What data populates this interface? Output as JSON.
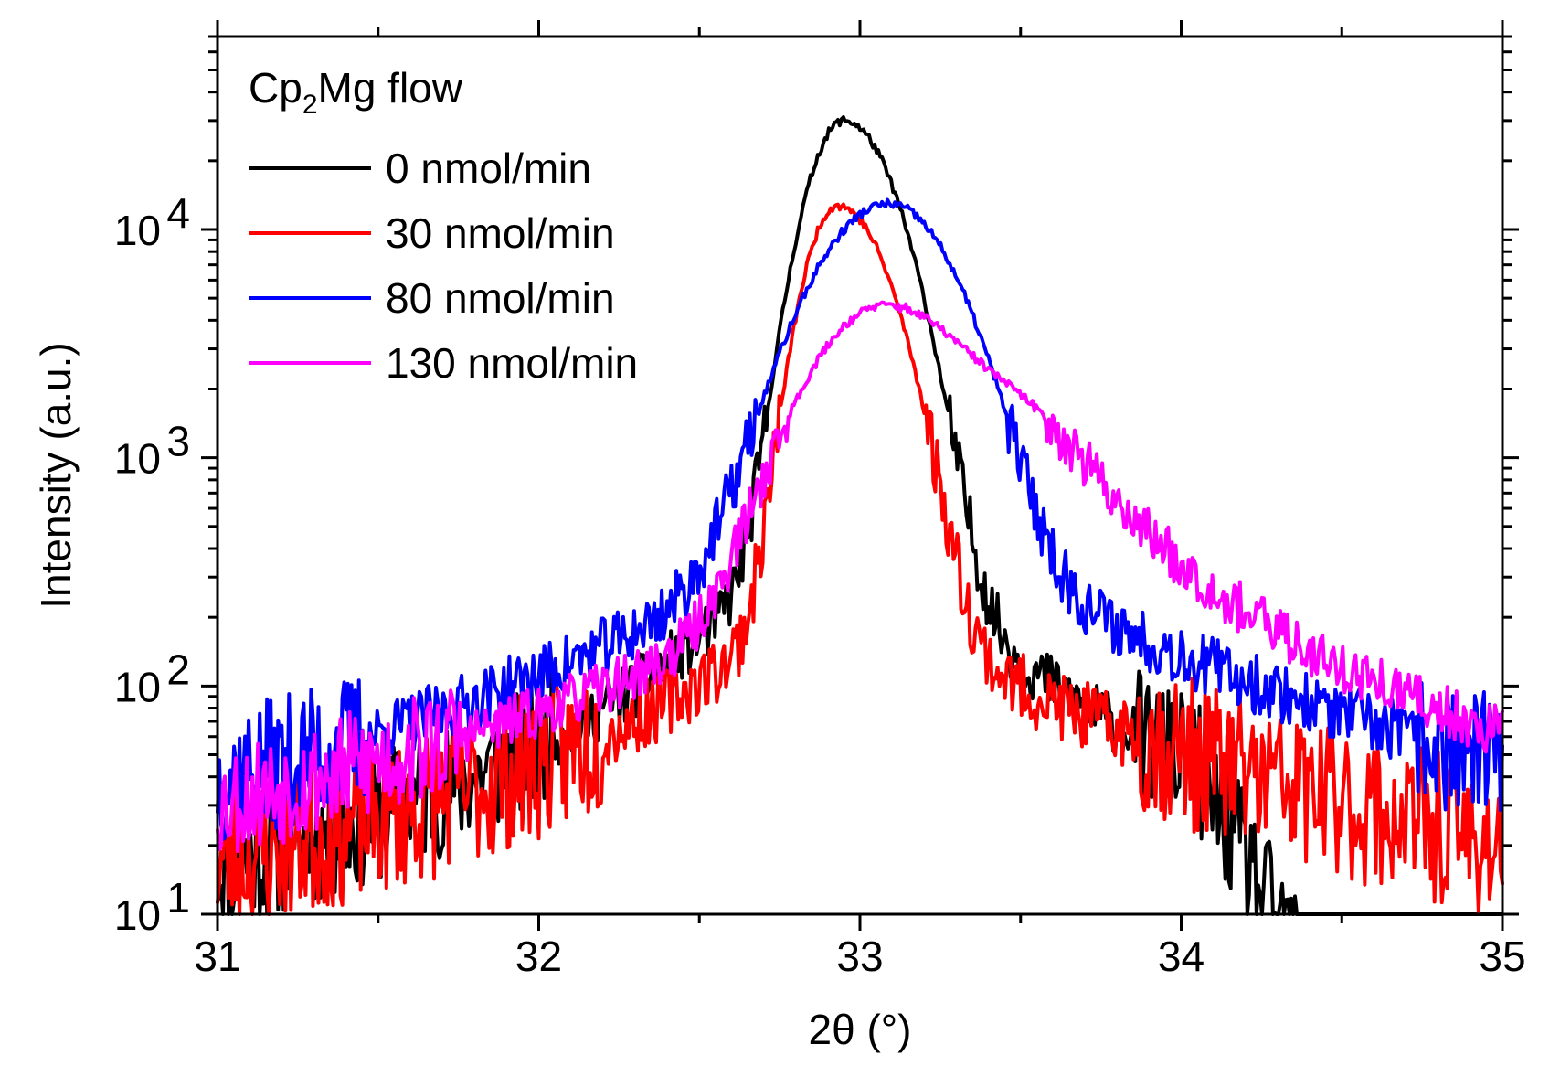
{
  "chart_data": {
    "type": "line",
    "title": "",
    "xlabel": "2θ (°)",
    "ylabel": "Intensity (a.u.)",
    "xlim": [
      31,
      35
    ],
    "ylim": [
      10,
      70000
    ],
    "yscale": "log",
    "x_ticks": [
      "31",
      "32",
      "33",
      "34",
      "35"
    ],
    "y_ticks": [
      {
        "base": "10",
        "exp": "1",
        "value": 10
      },
      {
        "base": "10",
        "exp": "2",
        "value": 100
      },
      {
        "base": "10",
        "exp": "3",
        "value": 1000
      },
      {
        "base": "10",
        "exp": "4",
        "value": 10000
      }
    ],
    "legend": {
      "title_main": "Cp",
      "title_sub": "2",
      "title_rest": "Mg flow",
      "position": "top-left"
    },
    "series": [
      {
        "name": "0 nmol/min",
        "color": "#000000",
        "peak": 32.95,
        "amp": 29500,
        "sigL": 0.095,
        "sigR": 0.13,
        "tails": [
          {
            "c": 32.95,
            "amp": 500,
            "w": 0.28
          },
          {
            "c": 33.0,
            "amp": 30,
            "w": 1.0
          }
        ],
        "cut_high": 34.05,
        "cut_rate": 5,
        "noise": 0.14,
        "seed": 11
      },
      {
        "name": "30 nmol/min",
        "color": "#ff0000",
        "peak": 32.93,
        "amp": 12500,
        "sigL": 0.085,
        "sigR": 0.13,
        "tails": [
          {
            "c": 32.95,
            "amp": 200,
            "w": 0.32
          },
          {
            "c": 33.2,
            "amp": 50,
            "w": 1.2
          }
        ],
        "cut_high": 0,
        "cut_rate": 0,
        "noise": 0.16,
        "seed": 23
      },
      {
        "name": "80 nmol/min",
        "color": "#0000ff",
        "peak": 33.09,
        "amp": 12500,
        "sigL": 0.19,
        "sigR": 0.17,
        "tails": [
          {
            "c": 33.05,
            "amp": 380,
            "w": 0.55
          },
          {
            "c": 33.2,
            "amp": 60,
            "w": 1.2
          }
        ],
        "cut_high": 0,
        "cut_rate": 0,
        "noise": 0.14,
        "seed": 37
      },
      {
        "name": "130 nmol/min",
        "color": "#ff00ff",
        "peak": 33.07,
        "amp": 4200,
        "sigL": 0.19,
        "sigR": 0.21,
        "tails": [
          {
            "c": 33.5,
            "amp": 1300,
            "w": 0.27
          },
          {
            "c": 33.2,
            "amp": 80,
            "w": 1.1
          }
        ],
        "cut_high": 0,
        "cut_rate": 0,
        "noise": 0.12,
        "seed": 53
      }
    ]
  }
}
